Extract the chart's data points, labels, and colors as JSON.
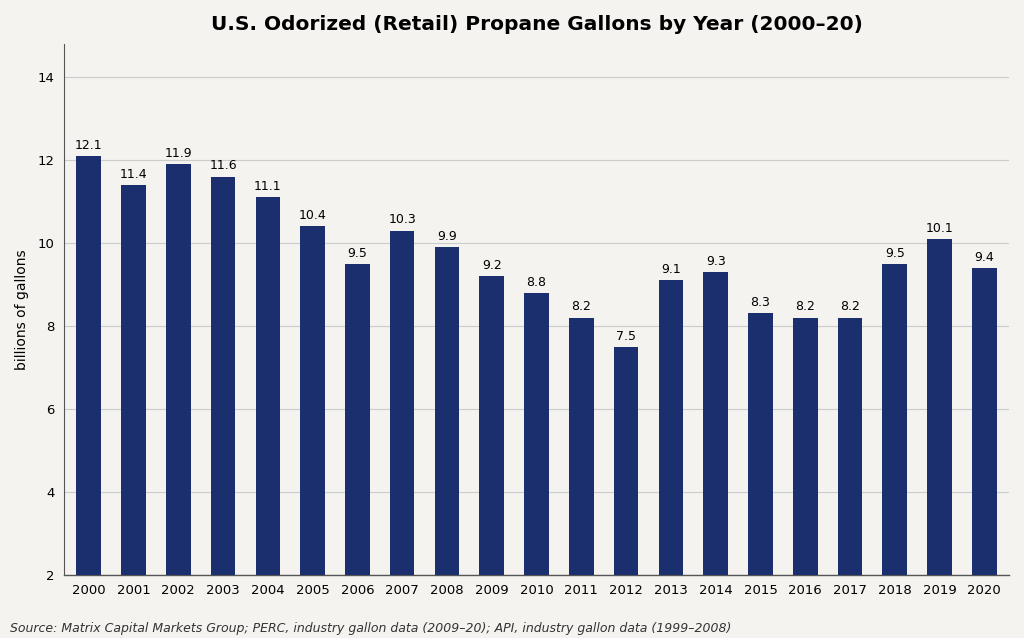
{
  "title": "U.S. Odorized (Retail) Propane Gallons by Year (2000–20)",
  "ylabel": "billions of gallons",
  "source_text": "Source: Matrix Capital Markets Group; PERC, industry gallon data (2009–20); API, industry gallon data (1999–2008)",
  "years": [
    2000,
    2001,
    2002,
    2003,
    2004,
    2005,
    2006,
    2007,
    2008,
    2009,
    2010,
    2011,
    2012,
    2013,
    2014,
    2015,
    2016,
    2017,
    2018,
    2019,
    2020
  ],
  "values": [
    12.1,
    11.4,
    11.9,
    11.6,
    11.1,
    10.4,
    9.5,
    10.3,
    9.9,
    9.2,
    8.8,
    8.2,
    7.5,
    9.1,
    9.3,
    8.3,
    8.2,
    8.2,
    9.5,
    10.1,
    9.4
  ],
  "bar_color": "#1b2f6e",
  "background_color": "#f5f3ef",
  "grid_color": "#cccccc",
  "spine_color": "#555555",
  "ylim_min": 2,
  "ylim_max": 14.8,
  "yticks": [
    2,
    4,
    6,
    8,
    10,
    12,
    14
  ],
  "title_fontsize": 14.5,
  "label_fontsize": 10,
  "tick_fontsize": 9.5,
  "annotation_fontsize": 9,
  "source_fontsize": 9,
  "bar_width": 0.55
}
